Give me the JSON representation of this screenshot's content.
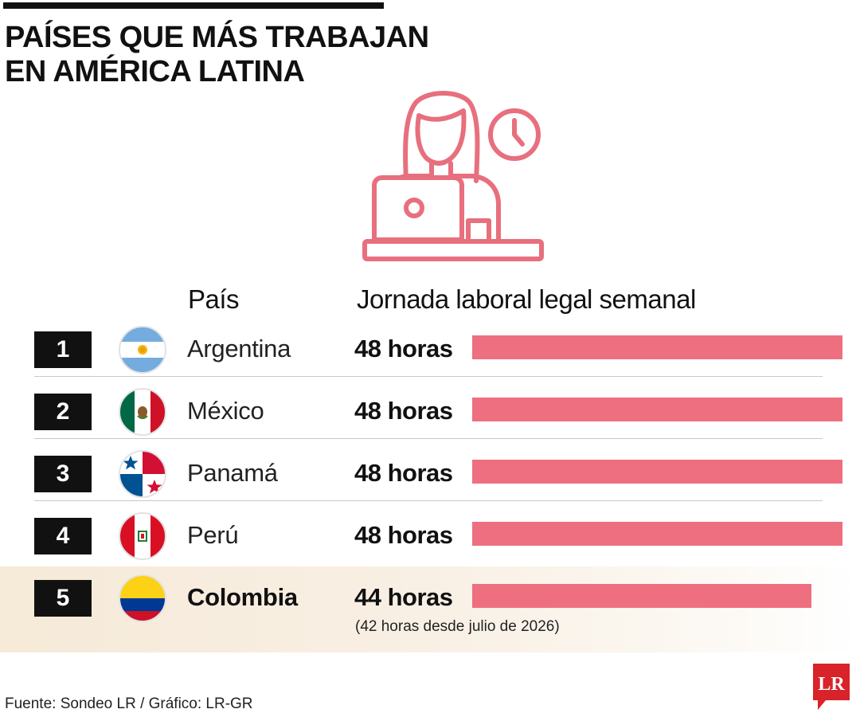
{
  "header": {
    "title_line1": "PAÍSES QUE MÁS TRABAJAN",
    "title_line2": "EN AMÉRICA LATINA"
  },
  "columns": {
    "country": "País",
    "hours": "Jornada laboral legal semanal"
  },
  "chart_data": {
    "type": "bar",
    "orientation": "horizontal",
    "title": "PAÍSES QUE MÁS TRABAJAN EN AMÉRICA LATINA",
    "categories": [
      "Argentina",
      "México",
      "Panamá",
      "Perú",
      "Colombia"
    ],
    "values": [
      48,
      48,
      48,
      48,
      44
    ],
    "unit": "horas",
    "xlim": [
      0,
      48
    ],
    "bar_color": "#ee6f80",
    "rows": [
      {
        "rank": "1",
        "country": "Argentina",
        "value": 48,
        "label": "48 horas",
        "flag": "argentina-flag-icon"
      },
      {
        "rank": "2",
        "country": "México",
        "value": 48,
        "label": "48 horas",
        "flag": "mexico-flag-icon"
      },
      {
        "rank": "3",
        "country": "Panamá",
        "value": 48,
        "label": "48 horas",
        "flag": "panama-flag-icon"
      },
      {
        "rank": "4",
        "country": "Perú",
        "value": 48,
        "label": "48 horas",
        "flag": "peru-flag-icon"
      },
      {
        "rank": "5",
        "country": "Colombia",
        "value": 44,
        "label": "44 horas",
        "flag": "colombia-flag-icon",
        "highlight": true
      }
    ],
    "annotation": "(42 horas desde julio de 2026)"
  },
  "footer": {
    "source": "Fuente: Sondeo LR / Gráfico: LR-GR",
    "logo_text": "LR"
  },
  "colors": {
    "accent": "#ee6f80",
    "icon_stroke": "#e86f7e",
    "highlight_band": "#f6ead8",
    "rank_box": "#111111"
  },
  "icons": {
    "hero": "woman-at-laptop-with-clock-icon"
  }
}
